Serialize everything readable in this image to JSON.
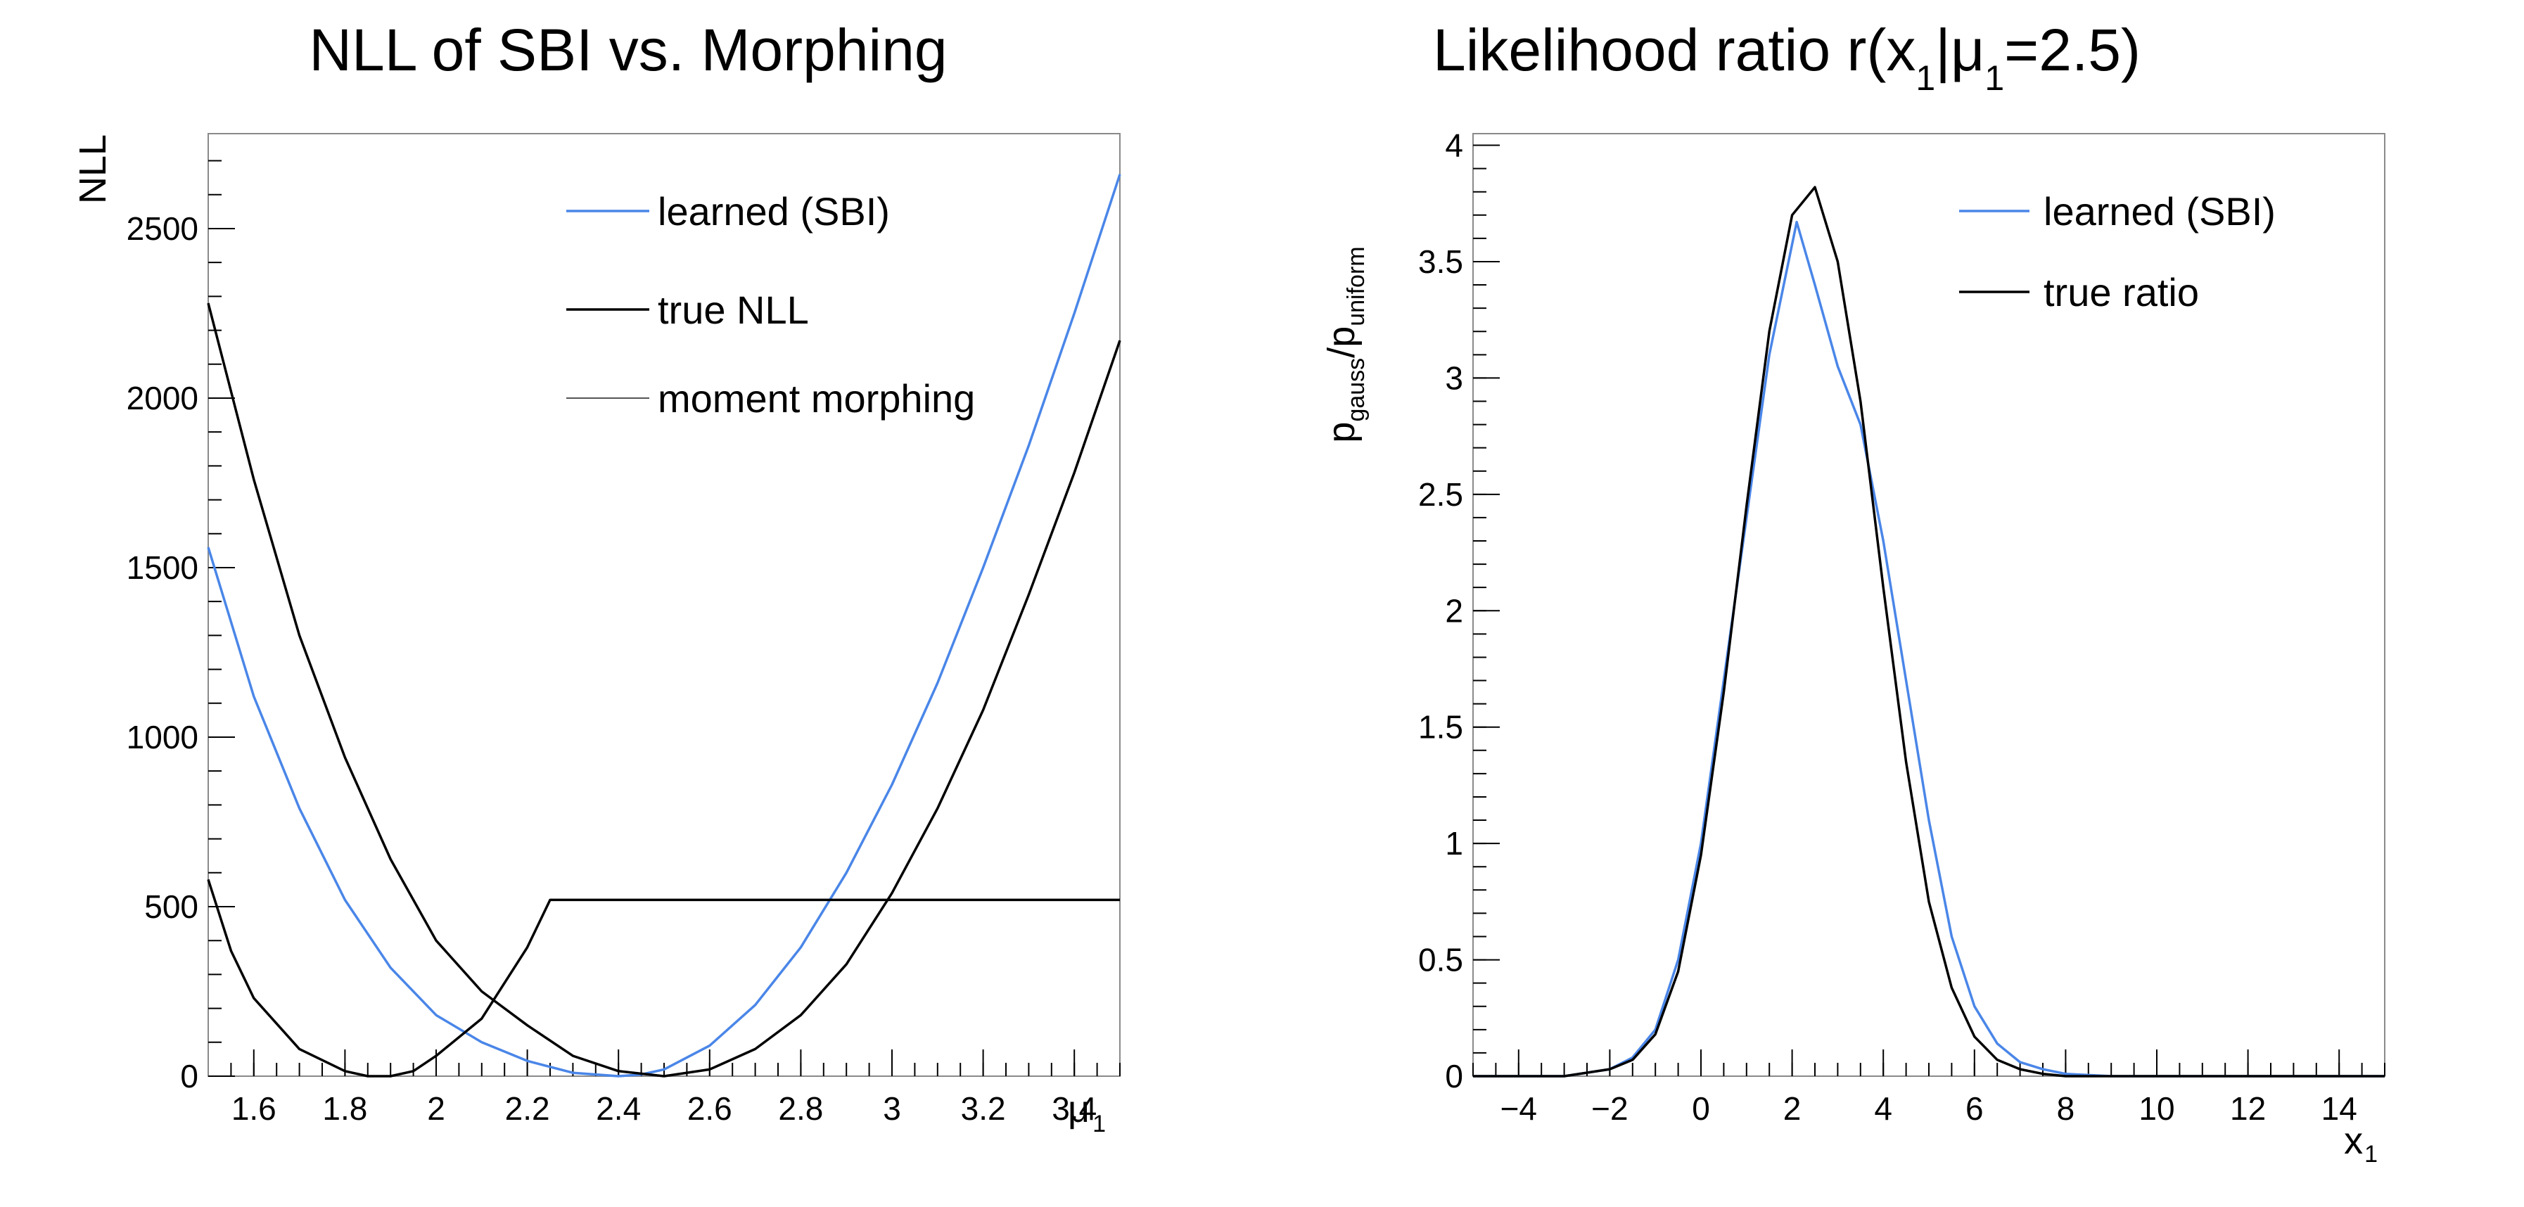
{
  "colors": {
    "learned": "#4a86e8",
    "true": "#000000",
    "morph": "#555555",
    "frame": "#8a8a8a"
  },
  "chart_data": [
    {
      "type": "line",
      "title": "NLL of SBI vs. Morphing",
      "xlabel": "μ",
      "xlabel_sub": "1",
      "ylabel": "NLL",
      "xlim": [
        1.5,
        3.5
      ],
      "ylim": [
        0,
        2780
      ],
      "x_ticks": [
        1.6,
        1.8,
        2,
        2.2,
        2.4,
        2.6,
        2.8,
        3,
        3.2,
        3.4
      ],
      "x_tick_labels": [
        "1.6",
        "1.8",
        "2",
        "2.2",
        "2.4",
        "2.6",
        "2.8",
        "3",
        "3.2",
        "3.4"
      ],
      "y_ticks": [
        0,
        500,
        1000,
        1500,
        2000,
        2500
      ],
      "y_tick_labels": [
        "0",
        "500",
        "1000",
        "1500",
        "2000",
        "2500"
      ],
      "legend_position": "top-right",
      "series": [
        {
          "name": "learned (SBI)",
          "color_key": "learned",
          "x": [
            1.5,
            1.6,
            1.7,
            1.8,
            1.9,
            2.0,
            2.1,
            2.2,
            2.3,
            2.4,
            2.45,
            2.5,
            2.6,
            2.7,
            2.8,
            2.9,
            3.0,
            3.1,
            3.2,
            3.3,
            3.4,
            3.5
          ],
          "y": [
            1560,
            1120,
            790,
            520,
            320,
            180,
            100,
            45,
            10,
            0,
            5,
            20,
            90,
            210,
            380,
            600,
            860,
            1160,
            1500,
            1860,
            2250,
            2660
          ]
        },
        {
          "name": "true NLL",
          "color_key": "true",
          "x": [
            1.5,
            1.6,
            1.7,
            1.8,
            1.9,
            2.0,
            2.1,
            2.2,
            2.3,
            2.4,
            2.5,
            2.6,
            2.7,
            2.8,
            2.9,
            3.0,
            3.1,
            3.2,
            3.3,
            3.4,
            3.5
          ],
          "y": [
            2280,
            1760,
            1300,
            940,
            640,
            400,
            250,
            150,
            60,
            15,
            0,
            20,
            80,
            180,
            330,
            540,
            790,
            1080,
            1420,
            1780,
            2170
          ]
        },
        {
          "name": "moment morphing",
          "color_key": "true",
          "x": [
            1.5,
            1.55,
            1.6,
            1.7,
            1.8,
            1.85,
            1.9,
            1.95,
            2.0,
            2.1,
            2.2,
            2.25,
            2.3,
            2.6,
            3.0,
            3.5
          ],
          "y": [
            580,
            370,
            230,
            80,
            15,
            0,
            0,
            15,
            60,
            170,
            380,
            520,
            520,
            520,
            520,
            520
          ]
        }
      ]
    },
    {
      "type": "line",
      "title": "Likelihood ratio r(x",
      "title_sub1": "1",
      "title_mid": "|μ",
      "title_sub2": "1",
      "title_end": "=2.5)",
      "xlabel": "x",
      "xlabel_sub": "1",
      "ylabel": "p",
      "ylabel_sub1": "gauss",
      "ylabel_mid": "/p",
      "ylabel_sub2": "uniform",
      "xlim": [
        -5,
        15
      ],
      "ylim": [
        0,
        4.05
      ],
      "x_ticks": [
        -4,
        -2,
        0,
        2,
        4,
        6,
        8,
        10,
        12,
        14
      ],
      "x_tick_labels": [
        "−4",
        "−2",
        "0",
        "2",
        "4",
        "6",
        "8",
        "10",
        "12",
        "14"
      ],
      "y_ticks": [
        0,
        0.5,
        1,
        1.5,
        2,
        2.5,
        3,
        3.5,
        4
      ],
      "y_tick_labels": [
        "0",
        "0.5",
        "1",
        "1.5",
        "2",
        "2.5",
        "3",
        "3.5",
        "4"
      ],
      "legend_position": "top-right",
      "series": [
        {
          "name": "learned (SBI)",
          "color_key": "learned",
          "x": [
            -5,
            -3,
            -2,
            -1.5,
            -1,
            -0.5,
            0,
            0.5,
            1,
            1.5,
            2.1,
            2.5,
            3,
            3.5,
            4,
            4.5,
            5,
            5.5,
            6,
            6.5,
            7,
            7.5,
            8,
            9,
            10,
            15
          ],
          "y": [
            0,
            0,
            0.03,
            0.08,
            0.2,
            0.5,
            1.0,
            1.7,
            2.4,
            3.1,
            3.67,
            3.4,
            3.05,
            2.8,
            2.3,
            1.7,
            1.1,
            0.6,
            0.3,
            0.14,
            0.06,
            0.03,
            0.01,
            0,
            0,
            0
          ]
        },
        {
          "name": "true ratio",
          "color_key": "true",
          "x": [
            -5,
            -3,
            -2,
            -1.5,
            -1,
            -0.5,
            0,
            0.5,
            1,
            1.5,
            2,
            2.5,
            3,
            3.5,
            4,
            4.5,
            5,
            5.5,
            6,
            6.5,
            7,
            7.5,
            8,
            9,
            10,
            15
          ],
          "y": [
            0,
            0,
            0.03,
            0.07,
            0.18,
            0.45,
            0.95,
            1.65,
            2.45,
            3.2,
            3.7,
            3.82,
            3.5,
            2.9,
            2.1,
            1.35,
            0.75,
            0.38,
            0.17,
            0.07,
            0.03,
            0.01,
            0,
            0,
            0,
            0
          ]
        }
      ]
    }
  ]
}
